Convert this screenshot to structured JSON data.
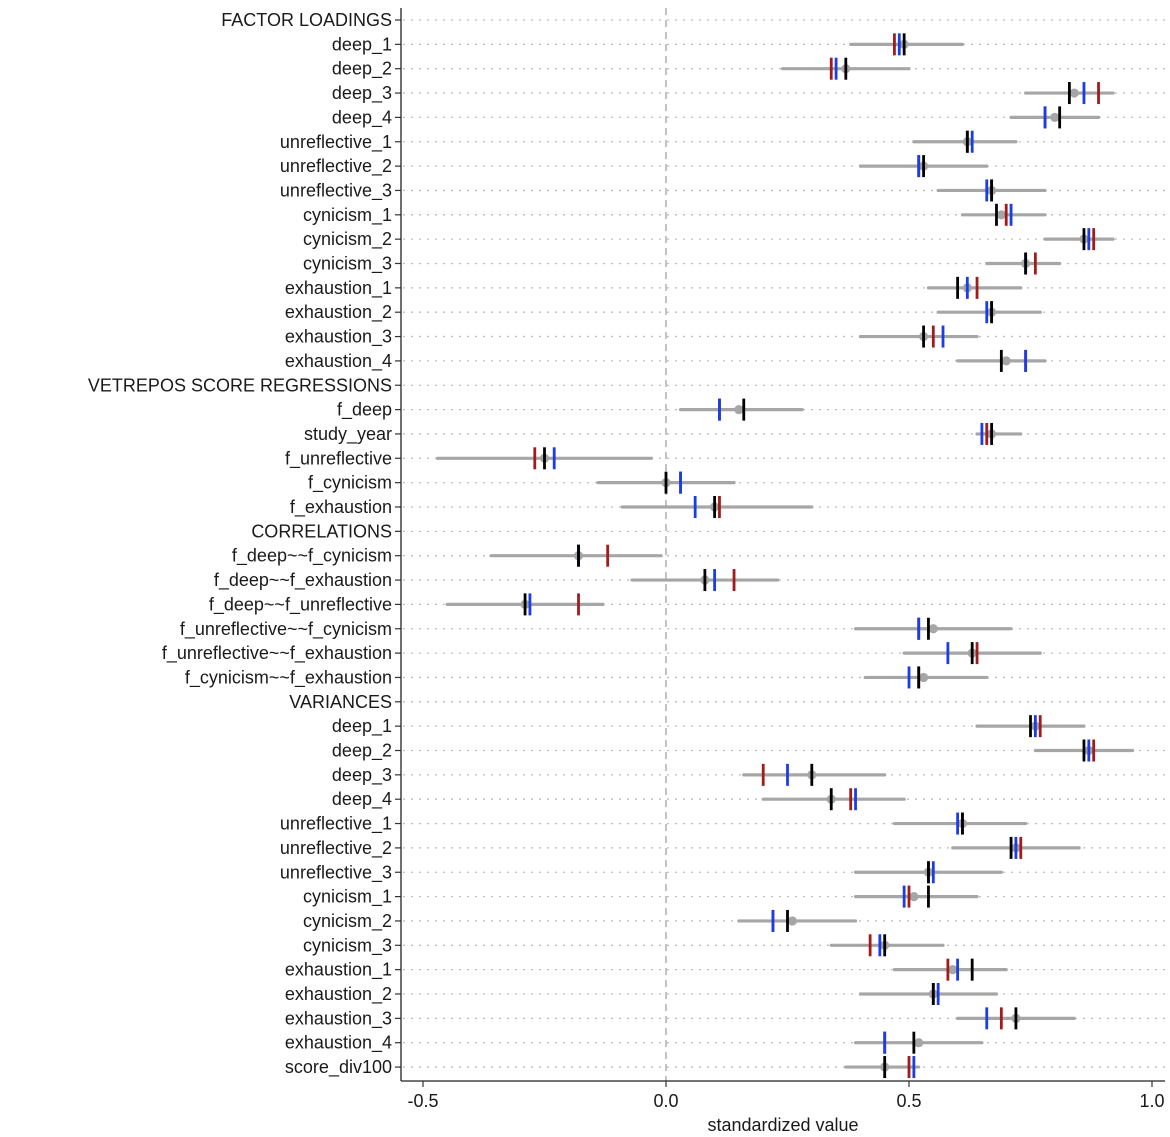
{
  "chart_data": {
    "type": "forest",
    "xlabel": "standardized value",
    "xlim": [
      -0.5,
      1.0
    ],
    "xticks": [
      -0.5,
      0.0,
      0.5,
      1.0
    ],
    "xtick_labels": [
      "-0.5",
      "0.0",
      "0.5",
      "1.0"
    ],
    "reference_line": 0.0,
    "grid": "dotted horizontal",
    "colors": {
      "ci": "#a6a6a6",
      "black_marker": "#000000",
      "blue_marker": "#1a3de6",
      "red_marker": "#a01c1c",
      "reference": "#b3b3b3",
      "grid": "#bdbdbd"
    },
    "rows": [
      {
        "label": "FACTOR LOADINGS",
        "header": true
      },
      {
        "label": "deep_1",
        "point": 0.49,
        "ci": [
          0.38,
          0.61
        ],
        "black": 0.49,
        "blue": 0.48,
        "red": 0.47
      },
      {
        "label": "deep_2",
        "point": 0.37,
        "ci": [
          0.24,
          0.5
        ],
        "black": 0.37,
        "blue": 0.35,
        "red": 0.34
      },
      {
        "label": "deep_3",
        "point": 0.84,
        "ci": [
          0.74,
          0.92
        ],
        "black": 0.83,
        "blue": 0.86,
        "red": 0.89
      },
      {
        "label": "deep_4",
        "point": 0.8,
        "ci": [
          0.71,
          0.89
        ],
        "black": 0.81,
        "blue": 0.78,
        "red": 0.78
      },
      {
        "label": "unreflective_1",
        "point": 0.62,
        "ci": [
          0.51,
          0.72
        ],
        "black": 0.62,
        "blue": 0.63,
        "red": 0.62
      },
      {
        "label": "unreflective_2",
        "point": 0.53,
        "ci": [
          0.4,
          0.66
        ],
        "black": 0.53,
        "blue": 0.52,
        "red": 0.52
      },
      {
        "label": "unreflective_3",
        "point": 0.67,
        "ci": [
          0.56,
          0.78
        ],
        "black": 0.67,
        "blue": 0.66,
        "red": 0.67
      },
      {
        "label": "cynicism_1",
        "point": 0.69,
        "ci": [
          0.61,
          0.78
        ],
        "black": 0.68,
        "blue": 0.71,
        "red": 0.7
      },
      {
        "label": "cynicism_2",
        "point": 0.86,
        "ci": [
          0.78,
          0.92
        ],
        "black": 0.86,
        "blue": 0.87,
        "red": 0.88
      },
      {
        "label": "cynicism_3",
        "point": 0.74,
        "ci": [
          0.66,
          0.81
        ],
        "black": 0.74,
        "blue": 0.74,
        "red": 0.76
      },
      {
        "label": "exhaustion_1",
        "point": 0.62,
        "ci": [
          0.54,
          0.73
        ],
        "black": 0.6,
        "blue": 0.62,
        "red": 0.64
      },
      {
        "label": "exhaustion_2",
        "point": 0.67,
        "ci": [
          0.56,
          0.77
        ],
        "black": 0.67,
        "blue": 0.66,
        "red": 0.67
      },
      {
        "label": "exhaustion_3",
        "point": 0.53,
        "ci": [
          0.4,
          0.64
        ],
        "black": 0.53,
        "blue": 0.57,
        "red": 0.55
      },
      {
        "label": "exhaustion_4",
        "point": 0.7,
        "ci": [
          0.6,
          0.78
        ],
        "black": 0.69,
        "blue": 0.74,
        "red": 0.74
      },
      {
        "label": "VETREPOS SCORE REGRESSIONS",
        "header": true
      },
      {
        "label": "f_deep",
        "point": 0.15,
        "ci": [
          0.03,
          0.28
        ],
        "black": 0.16,
        "blue": 0.11,
        "red": 0.11
      },
      {
        "label": "study_year",
        "point": 0.67,
        "ci": [
          0.64,
          0.73
        ],
        "black": 0.67,
        "blue": 0.65,
        "red": 0.66
      },
      {
        "label": "f_unreflective",
        "point": -0.25,
        "ci": [
          -0.47,
          -0.03
        ],
        "black": -0.25,
        "blue": -0.23,
        "red": -0.27
      },
      {
        "label": "f_cynicism",
        "point": 0.0,
        "ci": [
          -0.14,
          0.14
        ],
        "black": 0.0,
        "blue": 0.03,
        "red": 0.03
      },
      {
        "label": "f_exhaustion",
        "point": 0.1,
        "ci": [
          -0.09,
          0.3
        ],
        "black": 0.1,
        "blue": 0.06,
        "red": 0.11
      },
      {
        "label": "CORRELATIONS",
        "header": true
      },
      {
        "label": "f_deep~~f_cynicism",
        "point": -0.18,
        "ci": [
          -0.36,
          -0.01
        ],
        "black": -0.18,
        "blue": -0.18,
        "red": -0.12
      },
      {
        "label": "f_deep~~f_exhaustion",
        "point": 0.08,
        "ci": [
          -0.07,
          0.23
        ],
        "black": 0.08,
        "blue": 0.1,
        "red": 0.14
      },
      {
        "label": "f_deep~~f_unreflective",
        "point": -0.29,
        "ci": [
          -0.45,
          -0.13
        ],
        "black": -0.29,
        "blue": -0.28,
        "red": -0.18
      },
      {
        "label": "f_unreflective~~f_cynicism",
        "point": 0.55,
        "ci": [
          0.39,
          0.71
        ],
        "black": 0.54,
        "blue": 0.52,
        "red": 0.52
      },
      {
        "label": "f_unreflective~~f_exhaustion",
        "point": 0.63,
        "ci": [
          0.49,
          0.77
        ],
        "black": 0.63,
        "blue": 0.58,
        "red": 0.64
      },
      {
        "label": "f_cynicism~~f_exhaustion",
        "point": 0.53,
        "ci": [
          0.41,
          0.66
        ],
        "black": 0.52,
        "blue": 0.5,
        "red": 0.52
      },
      {
        "label": "VARIANCES",
        "header": true
      },
      {
        "label": "deep_1",
        "point": 0.76,
        "ci": [
          0.64,
          0.86
        ],
        "black": 0.75,
        "blue": 0.76,
        "red": 0.77
      },
      {
        "label": "deep_2",
        "point": 0.87,
        "ci": [
          0.76,
          0.96
        ],
        "black": 0.86,
        "blue": 0.87,
        "red": 0.88
      },
      {
        "label": "deep_3",
        "point": 0.3,
        "ci": [
          0.16,
          0.45
        ],
        "black": 0.3,
        "blue": 0.25,
        "red": 0.2
      },
      {
        "label": "deep_4",
        "point": 0.34,
        "ci": [
          0.2,
          0.49
        ],
        "black": 0.34,
        "blue": 0.39,
        "red": 0.38
      },
      {
        "label": "unreflective_1",
        "point": 0.61,
        "ci": [
          0.47,
          0.74
        ],
        "black": 0.61,
        "blue": 0.6,
        "red": 0.61
      },
      {
        "label": "unreflective_2",
        "point": 0.72,
        "ci": [
          0.59,
          0.85
        ],
        "black": 0.71,
        "blue": 0.72,
        "red": 0.73
      },
      {
        "label": "unreflective_3",
        "point": 0.54,
        "ci": [
          0.39,
          0.69
        ],
        "black": 0.54,
        "blue": 0.55,
        "red": 0.54
      },
      {
        "label": "cynicism_1",
        "point": 0.51,
        "ci": [
          0.39,
          0.64
        ],
        "black": 0.54,
        "blue": 0.49,
        "red": 0.5
      },
      {
        "label": "cynicism_2",
        "point": 0.26,
        "ci": [
          0.15,
          0.39
        ],
        "black": 0.25,
        "blue": 0.22,
        "red": 0.22
      },
      {
        "label": "cynicism_3",
        "point": 0.45,
        "ci": [
          0.34,
          0.57
        ],
        "black": 0.45,
        "blue": 0.44,
        "red": 0.42
      },
      {
        "label": "exhaustion_1",
        "point": 0.59,
        "ci": [
          0.47,
          0.7
        ],
        "black": 0.63,
        "blue": 0.6,
        "red": 0.58
      },
      {
        "label": "exhaustion_2",
        "point": 0.55,
        "ci": [
          0.4,
          0.68
        ],
        "black": 0.55,
        "blue": 0.56,
        "red": 0.55
      },
      {
        "label": "exhaustion_3",
        "point": 0.72,
        "ci": [
          0.6,
          0.84
        ],
        "black": 0.72,
        "blue": 0.66,
        "red": 0.69
      },
      {
        "label": "exhaustion_4",
        "point": 0.52,
        "ci": [
          0.39,
          0.65
        ],
        "black": 0.51,
        "blue": 0.45,
        "red": 0.45
      },
      {
        "label": "score_div100",
        "point": 0.45,
        "ci": [
          0.37,
          0.52
        ],
        "black": 0.45,
        "blue": 0.51,
        "red": 0.5
      }
    ]
  }
}
